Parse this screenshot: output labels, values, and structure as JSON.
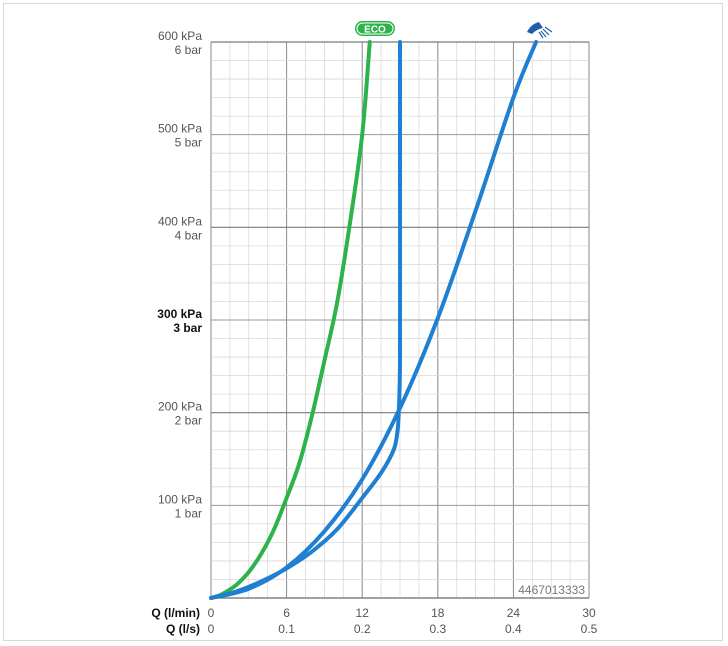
{
  "chart_data": {
    "type": "line",
    "xlabel_primary": "Q (l/min)",
    "xlabel_secondary": "Q (l/s)",
    "x_ticks_lmin": [
      "0",
      "6",
      "12",
      "18",
      "24",
      "30"
    ],
    "x_ticks_ls": [
      "0",
      "0.1",
      "0.2",
      "0.3",
      "0.4",
      "0.5"
    ],
    "y_ticks_kpa": [
      "100 kPa",
      "200 kPa",
      "300 kPa",
      "400 kPa",
      "500 kPa",
      "600 kPa"
    ],
    "y_ticks_bar": [
      "1 bar",
      "2 bar",
      "3 bar",
      "4 bar",
      "5 bar",
      "6 bar"
    ],
    "highlight_tick_index": 2,
    "xlim": [
      0,
      30
    ],
    "ylim": [
      0,
      600
    ],
    "grid": true,
    "product_code": "4467013333",
    "eco_badge_text": "ECO",
    "series": [
      {
        "color": "#2db34a",
        "icon": "eco-badge-icon",
        "x": [
          0,
          0.5,
          1,
          2,
          3,
          4,
          5,
          6,
          7,
          8,
          9,
          10,
          11,
          12,
          12.6
        ],
        "y": [
          0,
          2,
          5,
          14,
          28,
          48,
          74,
          108,
          145,
          196,
          256,
          318,
          402,
          500,
          600
        ]
      },
      {
        "color": "#1f7fd0",
        "icon": "flow-limiter-line",
        "x": [
          0,
          2,
          4,
          6,
          8,
          10,
          12,
          13.5,
          14.5,
          14.8,
          14.9,
          15.0,
          15.0,
          15.0
        ],
        "y": [
          0,
          7,
          18,
          32,
          50,
          74,
          108,
          135,
          160,
          180,
          200,
          260,
          450,
          600
        ]
      },
      {
        "color": "#1f7fd0",
        "icon": "shower-head-icon",
        "x": [
          0,
          3,
          6,
          9,
          12,
          15,
          18,
          21,
          24,
          25.8
        ],
        "y": [
          0,
          10,
          33,
          72,
          128,
          205,
          302,
          418,
          540,
          600
        ]
      }
    ]
  }
}
